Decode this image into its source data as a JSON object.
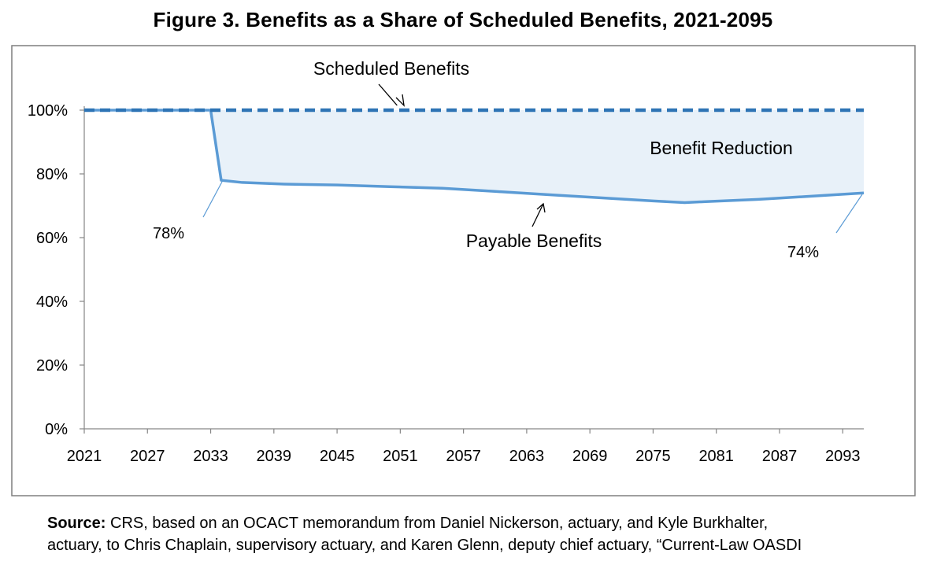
{
  "figure": {
    "title": "Figure 3. Benefits as a Share of Scheduled Benefits, 2021-2095"
  },
  "chart_data": {
    "type": "line",
    "x_range": [
      2021,
      2095
    ],
    "ylim": [
      0,
      100
    ],
    "y_ticks": [
      0,
      20,
      40,
      60,
      80,
      100
    ],
    "y_tick_labels": [
      "0%",
      "20%",
      "40%",
      "60%",
      "80%",
      "100%"
    ],
    "x_ticks": [
      2021,
      2027,
      2033,
      2039,
      2045,
      2051,
      2057,
      2063,
      2069,
      2075,
      2081,
      2087,
      2093
    ],
    "x_tick_labels": [
      "2021",
      "2027",
      "2033",
      "2039",
      "2045",
      "2051",
      "2057",
      "2063",
      "2069",
      "2075",
      "2081",
      "2087",
      "2093"
    ],
    "grid": false,
    "series": [
      {
        "name": "Scheduled Benefits",
        "style": "dashed",
        "color": "#2e74b5",
        "x": [
          2021,
          2095
        ],
        "y": [
          100,
          100
        ]
      },
      {
        "name": "Payable Benefits",
        "style": "solid",
        "color": "#5b9bd5",
        "x": [
          2021,
          2033,
          2034,
          2036,
          2040,
          2045,
          2050,
          2055,
          2060,
          2065,
          2070,
          2075,
          2078,
          2080,
          2085,
          2090,
          2095
        ],
        "y": [
          100,
          100,
          78,
          77.3,
          76.8,
          76.5,
          76,
          75.5,
          74.5,
          73.5,
          72.5,
          71.5,
          71,
          71.3,
          72,
          73,
          74
        ]
      }
    ],
    "shaded_region": {
      "label": "Benefit Reduction",
      "color": "#deebf7"
    },
    "annotations": [
      {
        "text": "Scheduled Benefits",
        "points_to": [
          2051,
          100
        ]
      },
      {
        "text": "Payable Benefits",
        "points_to": [
          2064,
          73.3
        ]
      },
      {
        "text": "78%",
        "points_to": [
          2034,
          78
        ]
      },
      {
        "text": "74%",
        "points_to": [
          2095,
          74
        ]
      }
    ]
  },
  "source": {
    "label": "Source:",
    "line1": "CRS, based on an OCACT memorandum from Daniel Nickerson, actuary, and Kyle Burkhalter,",
    "line2": "actuary, to Chris Chaplain, supervisory actuary, and Karen Glenn, deputy chief actuary, “Current-Law OASDI"
  }
}
